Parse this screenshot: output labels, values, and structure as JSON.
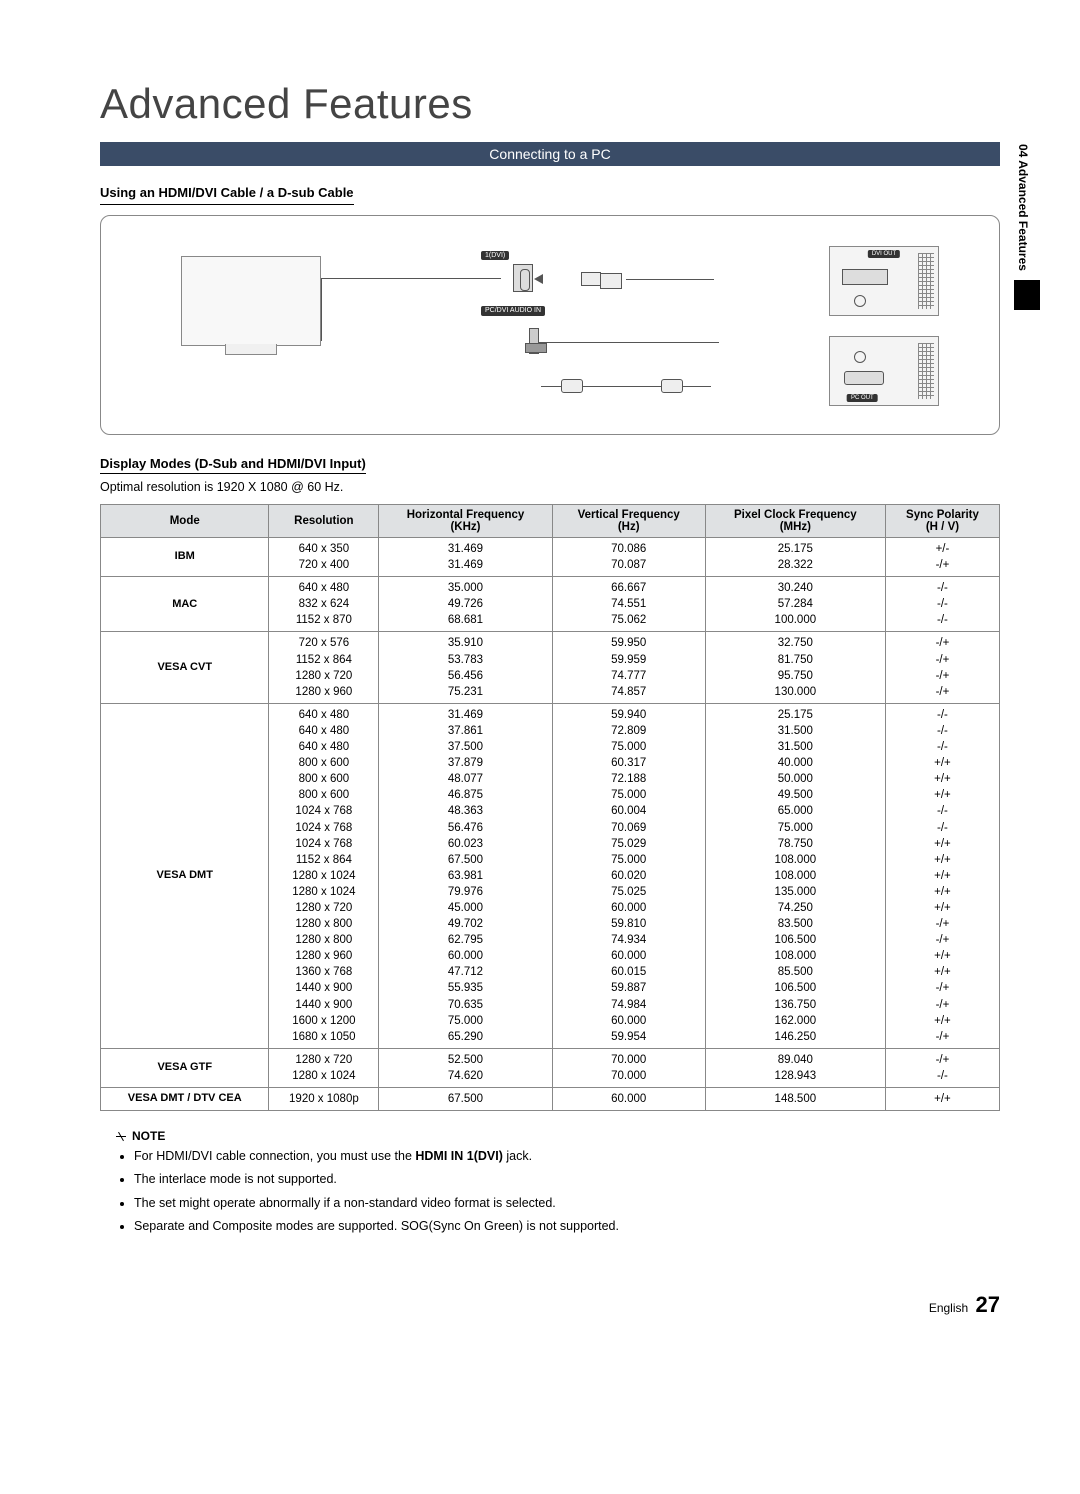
{
  "title": "Advanced Features",
  "banner": "Connecting to a PC",
  "sideTab": "04  Advanced Features",
  "subhead1": "Using an HDMI/DVI Cable / a D-sub Cable",
  "diagram": {
    "topPortLabel": "1(DVI)",
    "audioLabel": "PC/DVI\nAUDIO IN",
    "pc1Tag": "DVI OUT",
    "pc2Tag": "PC OUT"
  },
  "subhead2": "Display Modes (D-Sub and HDMI/DVI Input)",
  "optimal": "Optimal resolution is 1920 X 1080 @ 60 Hz.",
  "columns": [
    "Mode",
    "Resolution",
    "Horizontal Frequency\n(KHz)",
    "Vertical Frequency\n(Hz)",
    "Pixel Clock Frequency\n(MHz)",
    "Sync Polarity\n(H / V)"
  ],
  "modeGroups": [
    {
      "mode": "IBM",
      "rows": [
        [
          "640 x 350",
          "31.469",
          "70.086",
          "25.175",
          "+/-"
        ],
        [
          "720 x 400",
          "31.469",
          "70.087",
          "28.322",
          "-/+"
        ]
      ]
    },
    {
      "mode": "MAC",
      "rows": [
        [
          "640 x 480",
          "35.000",
          "66.667",
          "30.240",
          "-/-"
        ],
        [
          "832 x 624",
          "49.726",
          "74.551",
          "57.284",
          "-/-"
        ],
        [
          "1152 x 870",
          "68.681",
          "75.062",
          "100.000",
          "-/-"
        ]
      ]
    },
    {
      "mode": "VESA CVT",
      "rows": [
        [
          "720 x 576",
          "35.910",
          "59.950",
          "32.750",
          "-/+"
        ],
        [
          "1152 x 864",
          "53.783",
          "59.959",
          "81.750",
          "-/+"
        ],
        [
          "1280 x 720",
          "56.456",
          "74.777",
          "95.750",
          "-/+"
        ],
        [
          "1280 x 960",
          "75.231",
          "74.857",
          "130.000",
          "-/+"
        ]
      ]
    },
    {
      "mode": "VESA DMT",
      "rows": [
        [
          "640 x 480",
          "31.469",
          "59.940",
          "25.175",
          "-/-"
        ],
        [
          "640 x 480",
          "37.861",
          "72.809",
          "31.500",
          "-/-"
        ],
        [
          "640 x 480",
          "37.500",
          "75.000",
          "31.500",
          "-/-"
        ],
        [
          "800 x 600",
          "37.879",
          "60.317",
          "40.000",
          "+/+"
        ],
        [
          "800 x 600",
          "48.077",
          "72.188",
          "50.000",
          "+/+"
        ],
        [
          "800 x 600",
          "46.875",
          "75.000",
          "49.500",
          "+/+"
        ],
        [
          "1024 x 768",
          "48.363",
          "60.004",
          "65.000",
          "-/-"
        ],
        [
          "1024 x 768",
          "56.476",
          "70.069",
          "75.000",
          "-/-"
        ],
        [
          "1024 x 768",
          "60.023",
          "75.029",
          "78.750",
          "+/+"
        ],
        [
          "1152 x 864",
          "67.500",
          "75.000",
          "108.000",
          "+/+"
        ],
        [
          "1280 x 1024",
          "63.981",
          "60.020",
          "108.000",
          "+/+"
        ],
        [
          "1280 x 1024",
          "79.976",
          "75.025",
          "135.000",
          "+/+"
        ],
        [
          "1280 x 720",
          "45.000",
          "60.000",
          "74.250",
          "+/+"
        ],
        [
          "1280 x 800",
          "49.702",
          "59.810",
          "83.500",
          "-/+"
        ],
        [
          "1280 x 800",
          "62.795",
          "74.934",
          "106.500",
          "-/+"
        ],
        [
          "1280 x 960",
          "60.000",
          "60.000",
          "108.000",
          "+/+"
        ],
        [
          "1360 x 768",
          "47.712",
          "60.015",
          "85.500",
          "+/+"
        ],
        [
          "1440 x 900",
          "55.935",
          "59.887",
          "106.500",
          "-/+"
        ],
        [
          "1440 x 900",
          "70.635",
          "74.984",
          "136.750",
          "-/+"
        ],
        [
          "1600 x 1200",
          "75.000",
          "60.000",
          "162.000",
          "+/+"
        ],
        [
          "1680 x 1050",
          "65.290",
          "59.954",
          "146.250",
          "-/+"
        ]
      ]
    },
    {
      "mode": "VESA GTF",
      "rows": [
        [
          "1280 x 720",
          "52.500",
          "70.000",
          "89.040",
          "-/+"
        ],
        [
          "1280 x 1024",
          "74.620",
          "70.000",
          "128.943",
          "-/-"
        ]
      ]
    },
    {
      "mode": "VESA DMT / DTV CEA",
      "rows": [
        [
          "1920 x 1080p",
          "67.500",
          "60.000",
          "148.500",
          "+/+"
        ]
      ]
    }
  ],
  "noteLabel": "NOTE",
  "notes": [
    {
      "pre": "For HDMI/DVI cable connection, you must use the ",
      "bold": "HDMI IN 1(DVI)",
      "post": " jack."
    },
    {
      "pre": "The interlace mode is not supported.",
      "bold": "",
      "post": ""
    },
    {
      "pre": "The set might operate abnormally if a non-standard video format is selected.",
      "bold": "",
      "post": ""
    },
    {
      "pre": "Separate and Composite modes are supported. SOG(Sync On Green) is not supported.",
      "bold": "",
      "post": ""
    }
  ],
  "footerLang": "English",
  "pageNum": "27"
}
